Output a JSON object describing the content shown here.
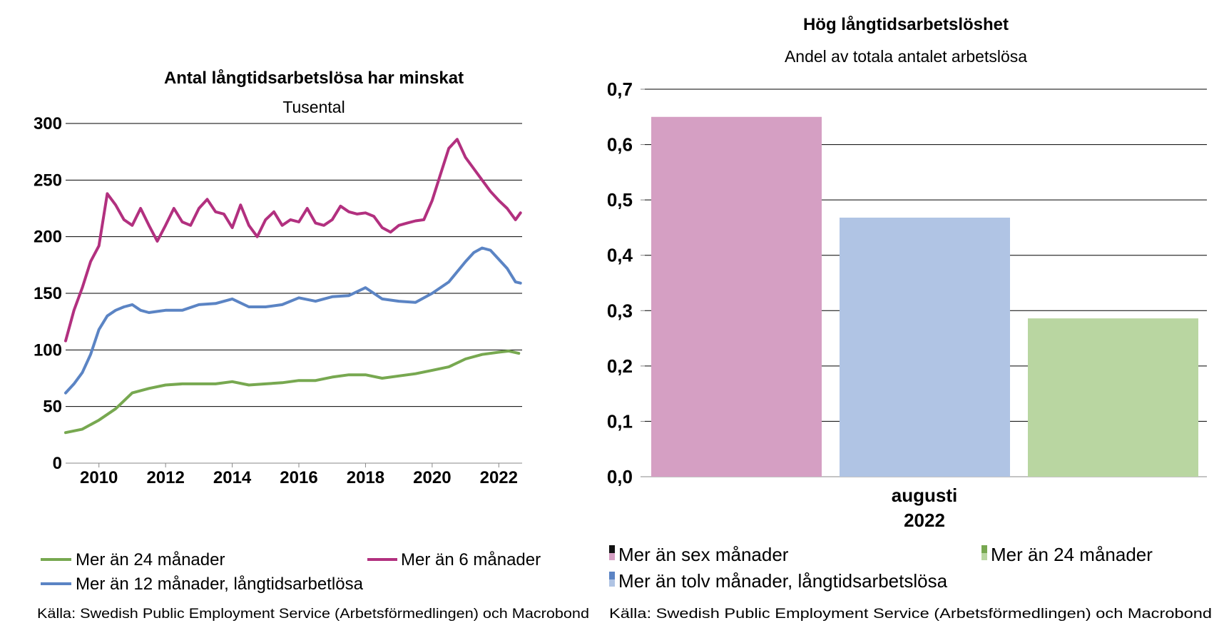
{
  "left": {
    "chart_data": {
      "type": "line",
      "title": "Antal långtidsarbetslösa har minskat",
      "subtitle": "Tusental",
      "ylim": [
        0,
        300
      ],
      "yticks": [
        "0",
        "50",
        "100",
        "150",
        "200",
        "250",
        "300"
      ],
      "xlim": [
        2009.0,
        2022.7
      ],
      "xticks": [
        "2010",
        "2012",
        "2014",
        "2016",
        "2018",
        "2020",
        "2022"
      ],
      "grid": true,
      "legend_position": "bottom",
      "series": [
        {
          "name": "Mer än 24 månader",
          "color": "#77a850",
          "x": [
            2009.0,
            2009.5,
            2010.0,
            2010.5,
            2011.0,
            2011.5,
            2012.0,
            2012.5,
            2013.0,
            2013.5,
            2014.0,
            2014.5,
            2015.0,
            2015.5,
            2016.0,
            2016.5,
            2017.0,
            2017.5,
            2018.0,
            2018.5,
            2019.0,
            2019.5,
            2020.0,
            2020.5,
            2021.0,
            2021.5,
            2022.0,
            2022.3,
            2022.6
          ],
          "y": [
            27,
            30,
            38,
            48,
            62,
            66,
            69,
            70,
            70,
            70,
            72,
            69,
            70,
            71,
            73,
            73,
            76,
            78,
            78,
            75,
            77,
            79,
            82,
            85,
            92,
            96,
            98,
            99,
            97
          ]
        },
        {
          "name": "Mer än 6 månader",
          "color": "#b2307f",
          "x": [
            2009.0,
            2009.25,
            2009.5,
            2009.75,
            2010.0,
            2010.25,
            2010.5,
            2010.75,
            2011.0,
            2011.25,
            2011.5,
            2011.75,
            2012.0,
            2012.25,
            2012.5,
            2012.75,
            2013.0,
            2013.25,
            2013.5,
            2013.75,
            2014.0,
            2014.25,
            2014.5,
            2014.75,
            2015.0,
            2015.25,
            2015.5,
            2015.75,
            2016.0,
            2016.25,
            2016.5,
            2016.75,
            2017.0,
            2017.25,
            2017.5,
            2017.75,
            2018.0,
            2018.25,
            2018.5,
            2018.75,
            2019.0,
            2019.25,
            2019.5,
            2019.75,
            2020.0,
            2020.25,
            2020.5,
            2020.75,
            2021.0,
            2021.25,
            2021.5,
            2021.75,
            2022.0,
            2022.25,
            2022.5,
            2022.65
          ],
          "y": [
            108,
            135,
            155,
            178,
            192,
            238,
            228,
            215,
            210,
            225,
            210,
            196,
            210,
            225,
            213,
            210,
            225,
            233,
            222,
            220,
            208,
            228,
            210,
            200,
            215,
            222,
            210,
            215,
            213,
            225,
            212,
            210,
            215,
            227,
            222,
            220,
            221,
            218,
            208,
            204,
            210,
            212,
            214,
            215,
            232,
            255,
            278,
            286,
            270,
            260,
            250,
            240,
            232,
            225,
            215,
            221
          ]
        },
        {
          "name": "Mer än 12 månader, långtidsarbetlösa",
          "color": "#5b84c4",
          "x": [
            2009.0,
            2009.25,
            2009.5,
            2009.75,
            2010.0,
            2010.25,
            2010.5,
            2010.75,
            2011.0,
            2011.25,
            2011.5,
            2011.75,
            2012.0,
            2012.5,
            2013.0,
            2013.5,
            2014.0,
            2014.5,
            2015.0,
            2015.5,
            2016.0,
            2016.5,
            2017.0,
            2017.5,
            2018.0,
            2018.5,
            2019.0,
            2019.5,
            2020.0,
            2020.5,
            2021.0,
            2021.25,
            2021.5,
            2021.75,
            2022.0,
            2022.25,
            2022.5,
            2022.65
          ],
          "y": [
            62,
            70,
            80,
            96,
            118,
            130,
            135,
            138,
            140,
            135,
            133,
            134,
            135,
            135,
            140,
            141,
            145,
            138,
            138,
            140,
            146,
            143,
            147,
            148,
            155,
            145,
            143,
            142,
            150,
            160,
            178,
            186,
            190,
            188,
            180,
            172,
            160,
            159
          ]
        }
      ]
    },
    "source": "Källa: Swedish Public Employment Service (Arbetsförmedlingen) och Macrobond"
  },
  "right": {
    "chart_data": {
      "type": "bar",
      "title": "Hög långtidsarbetslöshet",
      "subtitle": "Andel av totala antalet arbetslösa",
      "categories": [
        "augusti 2022"
      ],
      "category_lines": [
        "augusti",
        "2022"
      ],
      "ylim": [
        0,
        0.7
      ],
      "yticks": [
        "0,0",
        "0,1",
        "0,2",
        "0,3",
        "0,4",
        "0,5",
        "0,6",
        "0,7"
      ],
      "grid": true,
      "legend_position": "bottom",
      "series": [
        {
          "name": "Mer än sex månader",
          "color": "#d59fc3",
          "values": [
            0.65
          ]
        },
        {
          "name": "Mer än tolv månader, långtidsarbetslösa",
          "color": "#b0c4e4",
          "values": [
            0.468
          ]
        },
        {
          "name": "Mer än 24 månader",
          "color": "#b9d6a1",
          "values": [
            0.286
          ]
        }
      ]
    },
    "source": "Källa: Swedish Public Employment Service (Arbetsförmedlingen) och Macrobond"
  }
}
